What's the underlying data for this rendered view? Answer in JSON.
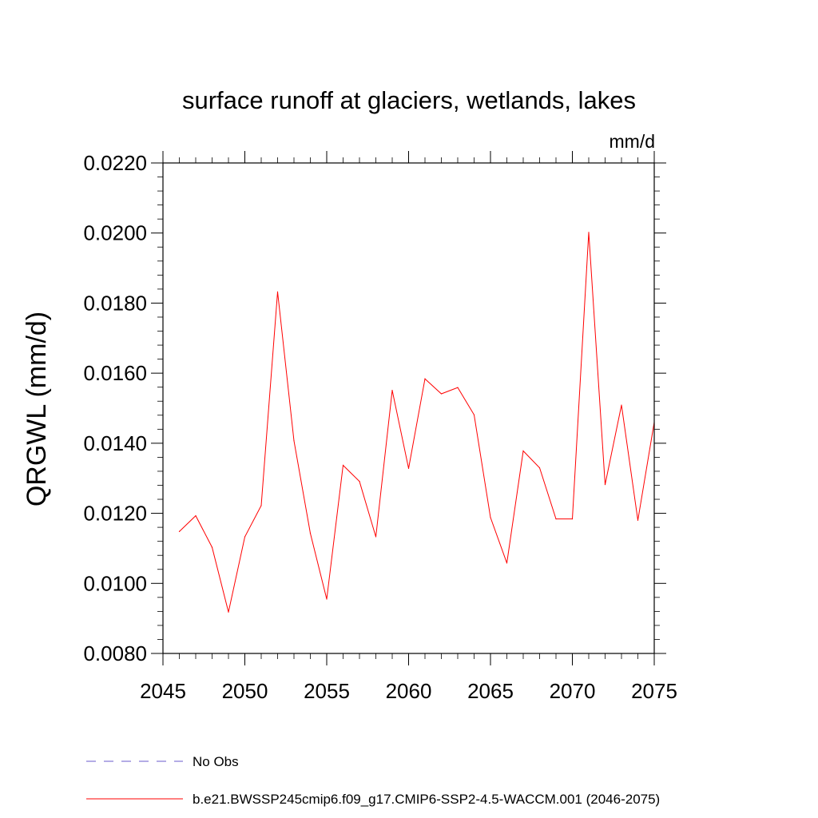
{
  "chart_data": {
    "type": "line",
    "title": "surface runoff at glaciers, wetlands, lakes",
    "units": "mm/d",
    "xlabel": "",
    "ylabel": "QRGWL  (mm/d)",
    "xlim": [
      2045,
      2075
    ],
    "ylim": [
      0.008,
      0.022
    ],
    "x_ticks": [
      2045,
      2050,
      2055,
      2060,
      2065,
      2070,
      2075
    ],
    "x_tick_labels": [
      "2045",
      "2050",
      "2055",
      "2060",
      "2065",
      "2070",
      "2075"
    ],
    "y_ticks": [
      0.008,
      0.01,
      0.012,
      0.014,
      0.016,
      0.018,
      0.02,
      0.022
    ],
    "y_tick_labels": [
      "0.0080",
      "0.0100",
      "0.0120",
      "0.0140",
      "0.0160",
      "0.0180",
      "0.0200",
      "0.0220"
    ],
    "grid": false,
    "legend_position": "bottom",
    "series": [
      {
        "name": "b.e21.BWSSP245cmip6.f09_g17.CMIP6-SSP2-4.5-WACCM.001 (2046-2075)",
        "color": "#ff0000",
        "style": "solid",
        "x": [
          2046,
          2047,
          2048,
          2049,
          2050,
          2051,
          2052,
          2053,
          2054,
          2055,
          2056,
          2057,
          2058,
          2059,
          2060,
          2061,
          2062,
          2063,
          2064,
          2065,
          2066,
          2067,
          2068,
          2069,
          2070,
          2071,
          2072,
          2073,
          2074,
          2075
        ],
        "values": [
          0.01148,
          0.01193,
          0.01103,
          0.00918,
          0.01133,
          0.01222,
          0.01832,
          0.01407,
          0.01143,
          0.00955,
          0.01337,
          0.01291,
          0.01133,
          0.01551,
          0.01328,
          0.01584,
          0.01541,
          0.01559,
          0.01481,
          0.01188,
          0.01058,
          0.01378,
          0.0133,
          0.01184,
          0.01184,
          0.02002,
          0.01282,
          0.01509,
          0.0118,
          0.0146
        ]
      }
    ],
    "legend": [
      {
        "label": "No Obs",
        "color": "#6a5acd",
        "style": "dashed"
      },
      {
        "label": "b.e21.BWSSP245cmip6.f09_g17.CMIP6-SSP2-4.5-WACCM.001 (2046-2075)",
        "color": "#ff0000",
        "style": "solid"
      }
    ]
  }
}
